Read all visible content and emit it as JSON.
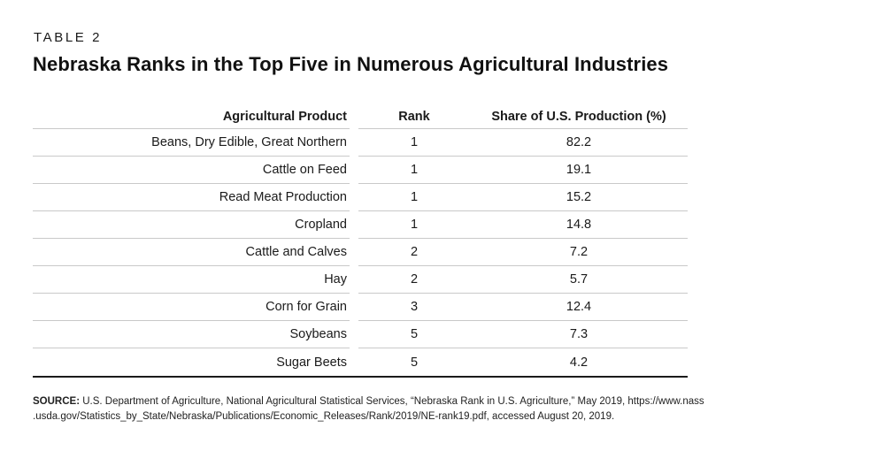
{
  "header": {
    "table_label": "TABLE 2",
    "title": "Nebraska Ranks in the Top Five in Numerous Agricultural Industries"
  },
  "table": {
    "columns": [
      "Agricultural Product",
      "Rank",
      "Share of U.S. Production (%)"
    ],
    "rows": [
      {
        "product": "Beans, Dry Edible, Great Northern",
        "rank": "1",
        "share": "82.2"
      },
      {
        "product": "Cattle on Feed",
        "rank": "1",
        "share": "19.1"
      },
      {
        "product": "Read Meat Production",
        "rank": "1",
        "share": "15.2"
      },
      {
        "product": "Cropland",
        "rank": "1",
        "share": "14.8"
      },
      {
        "product": "Cattle and Calves",
        "rank": "2",
        "share": "7.2"
      },
      {
        "product": "Hay",
        "rank": "2",
        "share": "5.7"
      },
      {
        "product": "Corn for Grain",
        "rank": "3",
        "share": "12.4"
      },
      {
        "product": "Soybeans",
        "rank": "5",
        "share": "7.3"
      },
      {
        "product": "Sugar Beets",
        "rank": "5",
        "share": "4.2"
      }
    ]
  },
  "source": {
    "label": "SOURCE:",
    "line1": "U.S. Department of Agriculture, National Agricultural Statistical Services, “Nebraska Rank in U.S. Agriculture,” May 2019, https://www.nass",
    "line2": ".usda.gov/Statistics_by_State/Nebraska/Publications/Economic_Releases/Rank/2019/NE-rank19.pdf, accessed August 20, 2019."
  },
  "colors": {
    "text": "#1a1a1a",
    "row_line": "#c9c9c9",
    "table_bottom_border": "#1a1a1a",
    "background": "#ffffff"
  },
  "chart_data": {
    "type": "table",
    "title": "Nebraska Ranks in the Top Five in Numerous Agricultural Industries",
    "columns": [
      "Agricultural Product",
      "Rank",
      "Share of U.S. Production (%)"
    ],
    "rows": [
      [
        "Beans, Dry Edible, Great Northern",
        1,
        82.2
      ],
      [
        "Cattle on Feed",
        1,
        19.1
      ],
      [
        "Read Meat Production",
        1,
        15.2
      ],
      [
        "Cropland",
        1,
        14.8
      ],
      [
        "Cattle and Calves",
        2,
        7.2
      ],
      [
        "Hay",
        2,
        5.7
      ],
      [
        "Corn for Grain",
        3,
        12.4
      ],
      [
        "Soybeans",
        5,
        7.3
      ],
      [
        "Sugar Beets",
        5,
        4.2
      ]
    ]
  }
}
